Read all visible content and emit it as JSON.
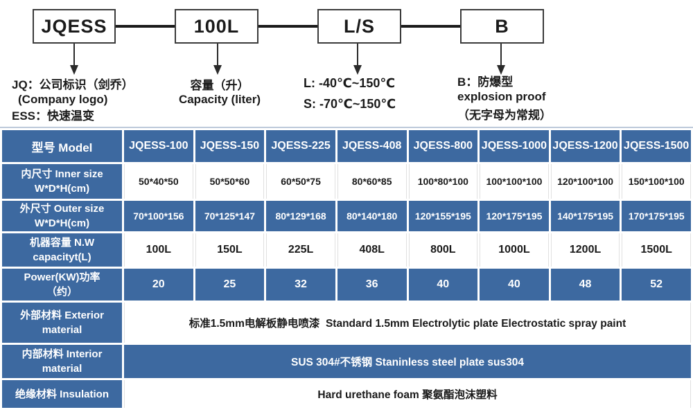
{
  "colors": {
    "table_blue": "#3d69a0",
    "diagram_line": "#1a1a1a",
    "white_cell_text": "#1a1a1a"
  },
  "diagram": {
    "boxes": [
      {
        "label": "JQESS"
      },
      {
        "label": "100L"
      },
      {
        "label": "L/S"
      },
      {
        "label": "B"
      }
    ],
    "jq_note": {
      "line1": "JQ：公司标识（剑乔）",
      "line2": "(Company logo)",
      "line3": "ESS：快速温变"
    },
    "capacity_note": {
      "line1": "容量（升）",
      "line2": "Capacity (liter)"
    },
    "temp_note": {
      "line1": "L: -40℃~150℃",
      "line2": "S: -70℃~150℃"
    },
    "b_note": {
      "line1": "B：防爆型",
      "line2": "explosion proof",
      "line3": "（无字母为常规）"
    }
  },
  "table": {
    "header_label": "型号 Model",
    "models": [
      "JQESS-100",
      "JQESS-150",
      "JQESS-225",
      "JQESS-408",
      "JQESS-800",
      "JQESS-1000",
      "JQESS-1200",
      "JQESS-1500"
    ],
    "rows": {
      "inner": {
        "l1": "内尺寸 Inner size",
        "l2": "W*D*H(cm)",
        "values": [
          "50*40*50",
          "50*50*60",
          "60*50*75",
          "80*60*85",
          "100*80*100",
          "100*100*100",
          "120*100*100",
          "150*100*100"
        ]
      },
      "outer": {
        "l1": "外尺寸 Outer size",
        "l2": "W*D*H(cm)",
        "values": [
          "70*100*156",
          "70*125*147",
          "80*129*168",
          "80*140*180",
          "120*155*195",
          "120*175*195",
          "140*175*195",
          "170*175*195"
        ]
      },
      "nw": {
        "l1": "机器容量 N.W",
        "l2": "capacityt(L)",
        "values": [
          "100L",
          "150L",
          "225L",
          "408L",
          "800L",
          "1000L",
          "1200L",
          "1500L"
        ]
      },
      "power": {
        "l1": "Power(KW)功率",
        "l2": "（约）",
        "values": [
          "20",
          "25",
          "32",
          "36",
          "40",
          "40",
          "48",
          "52"
        ]
      },
      "exterior": {
        "l1": "外部材料 Exterior",
        "l2": "material",
        "merged": "标准1.5mm电解板静电喷漆  Standard 1.5mm Electrolytic plate Electrostatic spray paint"
      },
      "interior": {
        "l1": "内部材料 Interior",
        "l2": "material",
        "merged": "SUS 304#不锈钢 Staninless steel plate sus304"
      },
      "insulation": {
        "l1": "绝缘材料 Insulation",
        "merged": "Hard urethane foam 聚氨酯泡沫塑料"
      }
    }
  }
}
